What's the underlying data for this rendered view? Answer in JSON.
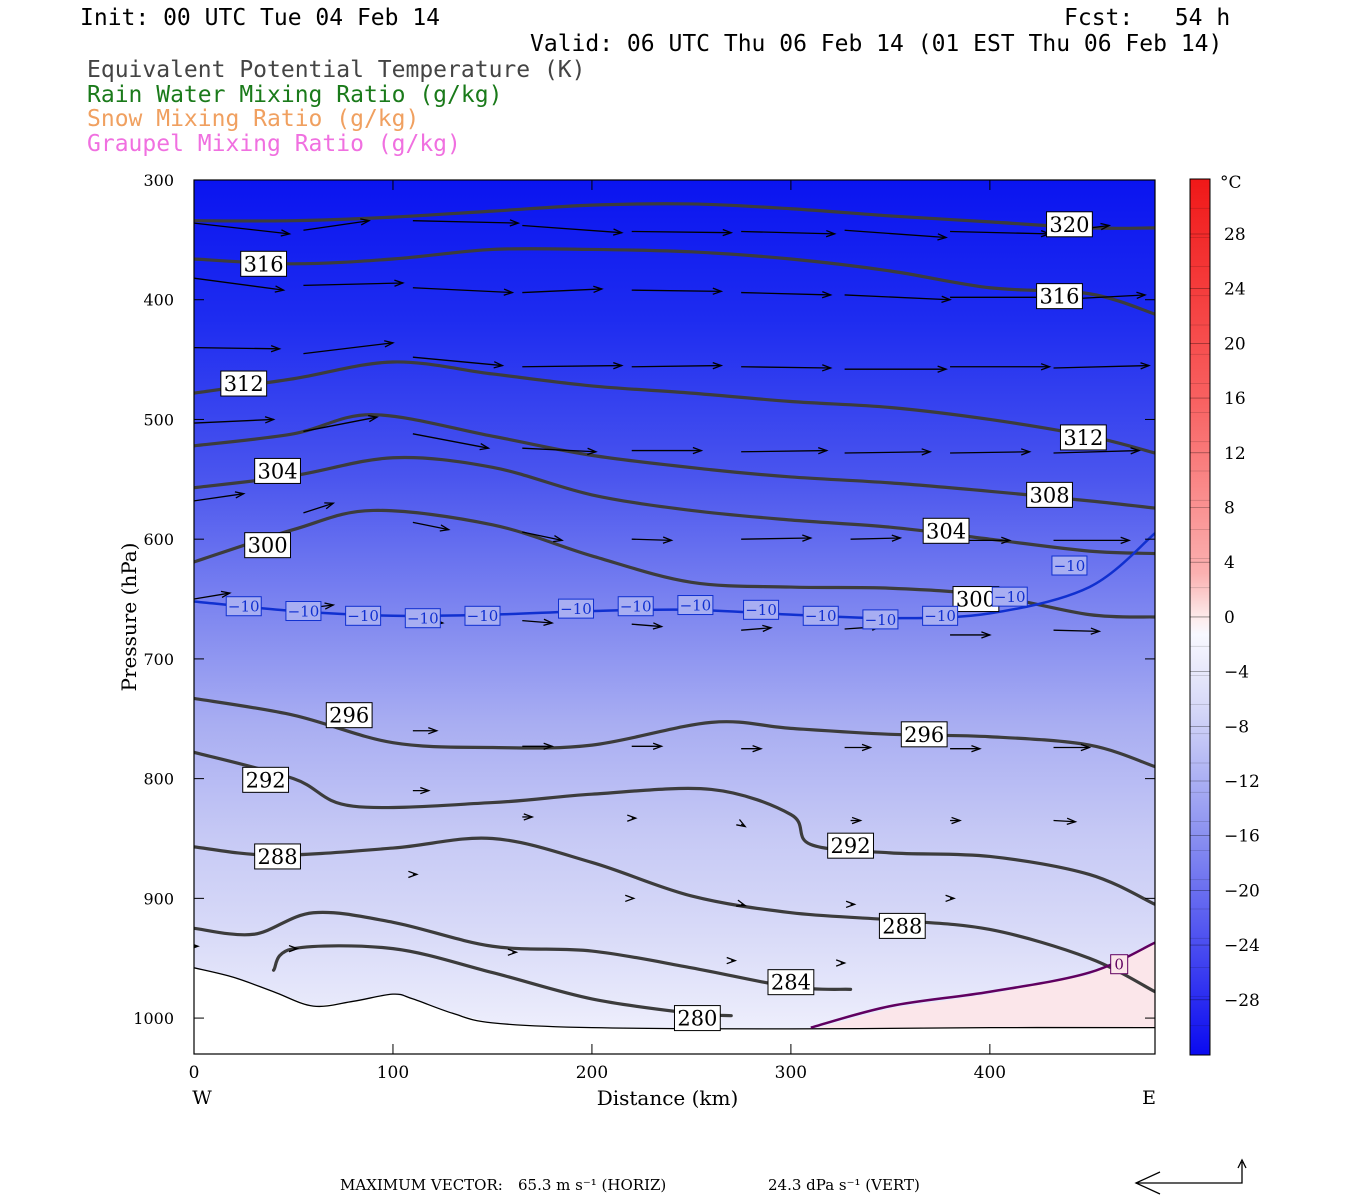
{
  "header": {
    "init": "Init: 00 UTC Tue 04 Feb 14",
    "fcst": "Fcst:   54 h",
    "valid": "Valid: 06 UTC Thu 06 Feb 14 (01 EST Thu 06 Feb 14)"
  },
  "legend": [
    {
      "text": "Equivalent Potential Temperature (K)",
      "color": "#444444"
    },
    {
      "text": "Rain Water Mixing Ratio (g/kg)",
      "color": "#1a7a1a"
    },
    {
      "text": "Snow Mixing Ratio (g/kg)",
      "color": "#f0a060"
    },
    {
      "text": "Graupel Mixing Ratio (g/kg)",
      "color": "#f070e0"
    }
  ],
  "chart_data": {
    "type": "contour-cross-section",
    "xlabel": "Distance (km)",
    "ylabel": "Pressure (hPa)",
    "xlim": [
      0,
      483
    ],
    "ylim": [
      1030,
      300
    ],
    "x_ticks": [
      0,
      100,
      200,
      300,
      400
    ],
    "y_ticks": [
      300,
      400,
      500,
      600,
      700,
      800,
      900,
      1000
    ],
    "west_label": "W",
    "east_label": "E",
    "colorbar": {
      "unit": "°C",
      "levels": [
        28,
        24,
        20,
        16,
        12,
        8,
        4,
        0,
        -4,
        -8,
        -12,
        -16,
        -20,
        -24,
        -28
      ],
      "labels": [
        "28",
        "24",
        "20",
        "16",
        "12",
        "8",
        "4",
        "0",
        "−4",
        "−8",
        "−12",
        "−16",
        "−20",
        "−24",
        "−28"
      ]
    },
    "theta_e_contours": [
      {
        "label": "320",
        "points": [
          [
            0,
            334
          ],
          [
            50,
            334
          ],
          [
            100,
            331
          ],
          [
            150,
            326
          ],
          [
            200,
            321
          ],
          [
            250,
            320
          ],
          [
            300,
            324
          ],
          [
            350,
            330
          ],
          [
            400,
            335
          ],
          [
            450,
            340
          ],
          [
            483,
            340
          ]
        ],
        "label_at": [
          440,
          337
        ]
      },
      {
        "label": "316",
        "points": [
          [
            0,
            366
          ],
          [
            50,
            370
          ],
          [
            100,
            366
          ],
          [
            150,
            358
          ],
          [
            200,
            358
          ],
          [
            250,
            360
          ],
          [
            300,
            366
          ],
          [
            350,
            376
          ],
          [
            400,
            390
          ],
          [
            450,
            395
          ],
          [
            483,
            412
          ]
        ],
        "label_at": [
          35,
          370
        ],
        "label2_at": [
          435,
          397
        ]
      },
      {
        "label": "312",
        "points": [
          [
            0,
            478
          ],
          [
            50,
            466
          ],
          [
            100,
            452
          ],
          [
            150,
            462
          ],
          [
            200,
            472
          ],
          [
            250,
            478
          ],
          [
            300,
            485
          ],
          [
            350,
            490
          ],
          [
            400,
            500
          ],
          [
            450,
            514
          ],
          [
            483,
            528
          ]
        ],
        "label_at": [
          25,
          470
        ],
        "label2_at": [
          447,
          515
        ]
      },
      {
        "label": "308",
        "points": [
          [
            0,
            522
          ],
          [
            50,
            512
          ],
          [
            90,
            496
          ],
          [
            150,
            514
          ],
          [
            200,
            530
          ],
          [
            260,
            542
          ],
          [
            300,
            548
          ],
          [
            350,
            553
          ],
          [
            400,
            560
          ],
          [
            450,
            568
          ],
          [
            483,
            574
          ]
        ],
        "label_at": [
          430,
          563
        ]
      },
      {
        "label": "304",
        "points": [
          [
            0,
            557
          ],
          [
            50,
            547
          ],
          [
            100,
            532
          ],
          [
            150,
            540
          ],
          [
            200,
            563
          ],
          [
            250,
            576
          ],
          [
            300,
            584
          ],
          [
            350,
            590
          ],
          [
            400,
            600
          ],
          [
            450,
            610
          ],
          [
            483,
            612
          ]
        ],
        "label_at": [
          42,
          543
        ],
        "label2_at": [
          378,
          593
        ]
      },
      {
        "label": "300",
        "points": [
          [
            0,
            619
          ],
          [
            50,
            592
          ],
          [
            90,
            576
          ],
          [
            150,
            588
          ],
          [
            200,
            614
          ],
          [
            250,
            636
          ],
          [
            300,
            640
          ],
          [
            350,
            641
          ],
          [
            400,
            647
          ],
          [
            450,
            663
          ],
          [
            483,
            665
          ]
        ],
        "label_at": [
          37,
          605
        ],
        "label2_at": [
          393,
          650
        ]
      },
      {
        "label": "296",
        "points": [
          [
            0,
            733
          ],
          [
            50,
            747
          ],
          [
            100,
            770
          ],
          [
            150,
            774
          ],
          [
            200,
            772
          ],
          [
            260,
            753
          ],
          [
            300,
            758
          ],
          [
            350,
            763
          ],
          [
            400,
            765
          ],
          [
            450,
            772
          ],
          [
            483,
            790
          ]
        ],
        "label_at": [
          78,
          747
        ],
        "label2_at": [
          367,
          763
        ]
      },
      {
        "label": "292",
        "points": [
          [
            0,
            778
          ],
          [
            50,
            800
          ],
          [
            80,
            823
          ],
          [
            150,
            820
          ],
          [
            200,
            813
          ],
          [
            260,
            809
          ],
          [
            300,
            830
          ],
          [
            310,
            855
          ],
          [
            350,
            862
          ],
          [
            400,
            865
          ],
          [
            450,
            880
          ],
          [
            483,
            905
          ]
        ],
        "label_at": [
          36,
          801
        ],
        "label2_at": [
          330,
          856
        ]
      },
      {
        "label": "288",
        "points": [
          [
            0,
            857
          ],
          [
            40,
            864
          ],
          [
            100,
            858
          ],
          [
            150,
            850
          ],
          [
            200,
            870
          ],
          [
            250,
            898
          ],
          [
            300,
            912
          ],
          [
            350,
            918
          ],
          [
            400,
            926
          ],
          [
            450,
            950
          ],
          [
            483,
            978
          ]
        ],
        "label_at": [
          42,
          865
        ],
        "label2_at": [
          356,
          923
        ]
      },
      {
        "label": "284",
        "points": [
          [
            0,
            925
          ],
          [
            30,
            930
          ],
          [
            60,
            912
          ],
          [
            100,
            920
          ],
          [
            150,
            940
          ],
          [
            200,
            944
          ],
          [
            250,
            958
          ],
          [
            300,
            974
          ],
          [
            330,
            976
          ]
        ],
        "label_at": [
          300,
          970
        ]
      },
      {
        "label": "280",
        "points": [
          [
            40,
            960
          ],
          [
            50,
            942
          ],
          [
            100,
            942
          ],
          [
            150,
            962
          ],
          [
            200,
            984
          ],
          [
            250,
            996
          ],
          [
            270,
            998
          ]
        ],
        "label_at": [
          253,
          1000
        ]
      }
    ],
    "temperature_contours": [
      {
        "label": "−10",
        "color": "#1030d0",
        "points": [
          [
            0,
            652
          ],
          [
            50,
            660
          ],
          [
            100,
            664
          ],
          [
            150,
            663
          ],
          [
            200,
            660
          ],
          [
            250,
            659
          ],
          [
            300,
            663
          ],
          [
            350,
            666
          ],
          [
            400,
            662
          ],
          [
            450,
            640
          ],
          [
            483,
            595
          ]
        ],
        "label_positions": [
          [
            25,
            656
          ],
          [
            55,
            660
          ],
          [
            85,
            664
          ],
          [
            115,
            666
          ],
          [
            145,
            664
          ],
          [
            192,
            658
          ],
          [
            222,
            656
          ],
          [
            252,
            655
          ],
          [
            285,
            659
          ],
          [
            315,
            664
          ],
          [
            345,
            667
          ],
          [
            375,
            664
          ],
          [
            410,
            648
          ],
          [
            440,
            622
          ]
        ]
      },
      {
        "label": "0",
        "color": "#600060",
        "points": [
          [
            310,
            1008
          ],
          [
            350,
            990
          ],
          [
            400,
            978
          ],
          [
            450,
            962
          ],
          [
            483,
            937
          ]
        ],
        "label_positions": [
          [
            465,
            955
          ]
        ]
      }
    ],
    "max_vector": {
      "label": "MAXIMUM VECTOR:",
      "horiz": "65.3 m s⁻¹ (HORIZ)",
      "vert": "24.3 dPa s⁻¹ (VERT)"
    }
  }
}
